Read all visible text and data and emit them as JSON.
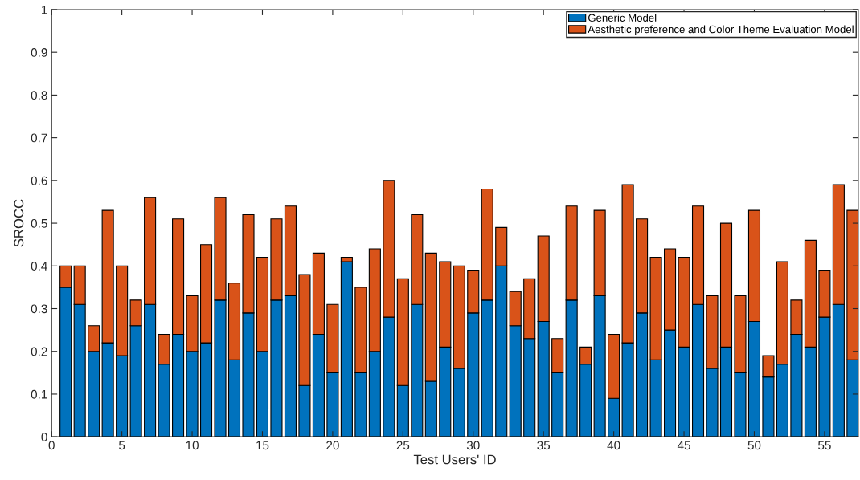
{
  "chart_data": {
    "type": "bar",
    "stacked": true,
    "xlabel": "Test Users' ID",
    "ylabel": "SROCC",
    "x": [
      1,
      2,
      3,
      4,
      5,
      6,
      7,
      8,
      9,
      10,
      11,
      12,
      13,
      14,
      15,
      16,
      17,
      18,
      19,
      20,
      21,
      22,
      23,
      24,
      25,
      26,
      27,
      28,
      29,
      30,
      31,
      32,
      33,
      34,
      35,
      36,
      37,
      38,
      39,
      40,
      41,
      42,
      43,
      44,
      45,
      46,
      47,
      48,
      49,
      50,
      51,
      52,
      53,
      54,
      55,
      56,
      57
    ],
    "series": [
      {
        "name": "Generic Model",
        "color": "#0072bd",
        "values": [
          0.35,
          0.31,
          0.2,
          0.22,
          0.19,
          0.26,
          0.31,
          0.17,
          0.24,
          0.2,
          0.22,
          0.32,
          0.18,
          0.29,
          0.2,
          0.32,
          0.33,
          0.12,
          0.24,
          0.15,
          0.41,
          0.15,
          0.2,
          0.28,
          0.12,
          0.31,
          0.13,
          0.21,
          0.16,
          0.29,
          0.32,
          0.4,
          0.26,
          0.23,
          0.27,
          0.15,
          0.32,
          0.17,
          0.33,
          0.09,
          0.22,
          0.29,
          0.18,
          0.25,
          0.21,
          0.31,
          0.16,
          0.21,
          0.15,
          0.27,
          0.14,
          0.17,
          0.24,
          0.21,
          0.28,
          0.31,
          0.18
        ]
      },
      {
        "name": "Aesthetic preference and Color Theme Evaluation Model",
        "color": "#d95319",
        "values": [
          0.05,
          0.09,
          0.06,
          0.31,
          0.21,
          0.06,
          0.25,
          0.07,
          0.27,
          0.13,
          0.23,
          0.24,
          0.18,
          0.23,
          0.22,
          0.19,
          0.21,
          0.26,
          0.19,
          0.16,
          0.01,
          0.2,
          0.24,
          0.32,
          0.25,
          0.21,
          0.3,
          0.2,
          0.24,
          0.1,
          0.26,
          0.09,
          0.08,
          0.14,
          0.2,
          0.08,
          0.22,
          0.04,
          0.2,
          0.15,
          0.37,
          0.22,
          0.24,
          0.19,
          0.21,
          0.23,
          0.17,
          0.29,
          0.18,
          0.26,
          0.05,
          0.24,
          0.08,
          0.25,
          0.11,
          0.28,
          0.35
        ]
      }
    ],
    "xlim": [
      0,
      57.4
    ],
    "xticks": [
      0,
      5,
      10,
      15,
      20,
      25,
      30,
      35,
      40,
      45,
      50,
      55
    ],
    "ylim": [
      0,
      1
    ],
    "yticks": [
      0,
      0.1,
      0.2,
      0.3,
      0.4,
      0.5,
      0.6,
      0.7,
      0.8,
      0.9,
      1
    ],
    "grid": false,
    "legend": "top right"
  }
}
